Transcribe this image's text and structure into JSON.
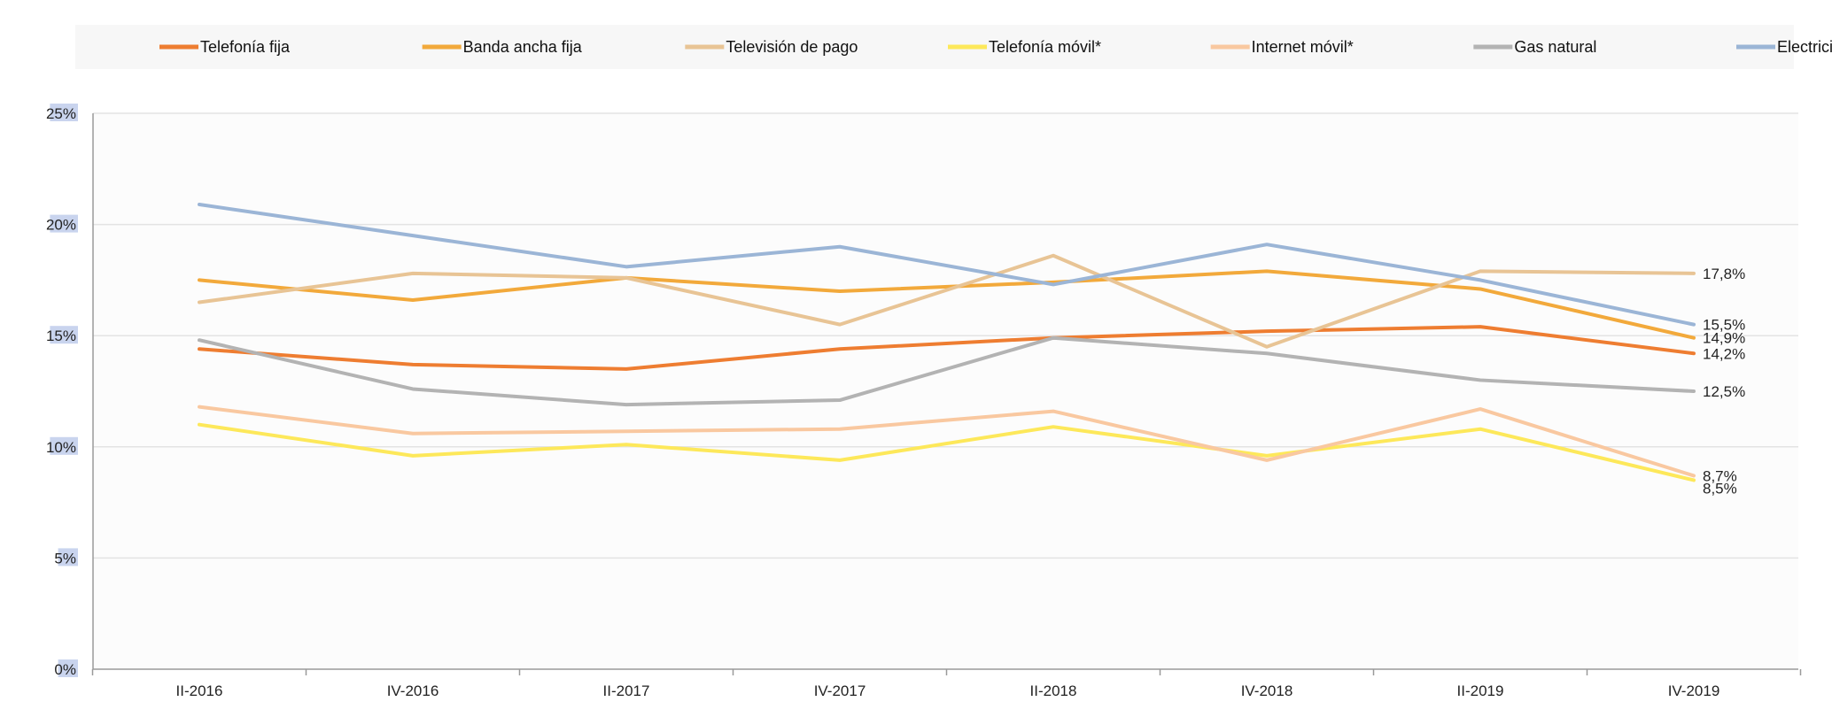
{
  "chart_data": {
    "type": "line",
    "categories": [
      "II-2016",
      "IV-2016",
      "II-2017",
      "IV-2017",
      "II-2018",
      "IV-2018",
      "II-2019",
      "IV-2019"
    ],
    "ylim": [
      0,
      25
    ],
    "yticks": [
      0,
      5,
      10,
      15,
      20,
      25
    ],
    "ytick_labels": [
      "0%",
      "5%",
      "10%",
      "15%",
      "20%",
      "25%"
    ],
    "grid": true,
    "legend_position": "top",
    "series": [
      {
        "name": "Telefonía fija",
        "color": "#ee7d31",
        "values": [
          14.4,
          13.7,
          13.5,
          14.4,
          14.9,
          15.2,
          15.4,
          14.2
        ],
        "end_label": "14,2%"
      },
      {
        "name": "Banda ancha fija",
        "color": "#f2a93b",
        "values": [
          17.5,
          16.6,
          17.6,
          17.0,
          17.4,
          17.9,
          17.1,
          14.9
        ],
        "end_label": "14,9%"
      },
      {
        "name": "Televisión de pago",
        "color": "#e8c495",
        "values": [
          16.5,
          17.8,
          17.6,
          15.5,
          18.6,
          14.5,
          17.9,
          17.8
        ],
        "end_label": "17,8%"
      },
      {
        "name": "Telefonía móvil*",
        "color": "#fde85a",
        "values": [
          11.0,
          9.6,
          10.1,
          9.4,
          10.9,
          9.6,
          10.8,
          8.5
        ],
        "end_label": "8,5%"
      },
      {
        "name": "Internet móvil*",
        "color": "#f9c8a0",
        "values": [
          11.8,
          10.6,
          10.7,
          10.8,
          11.6,
          9.4,
          11.7,
          8.7
        ],
        "end_label": "8,7%"
      },
      {
        "name": "Gas natural",
        "color": "#b3b3b3",
        "values": [
          14.8,
          12.6,
          11.9,
          12.1,
          14.9,
          14.2,
          13.0,
          12.5
        ],
        "end_label": "12,5%"
      },
      {
        "name": "Electricidad",
        "color": "#9bb5d6",
        "values": [
          20.9,
          19.5,
          18.1,
          19.0,
          17.3,
          19.1,
          17.5,
          15.5
        ],
        "end_label": "15,5%"
      }
    ]
  }
}
